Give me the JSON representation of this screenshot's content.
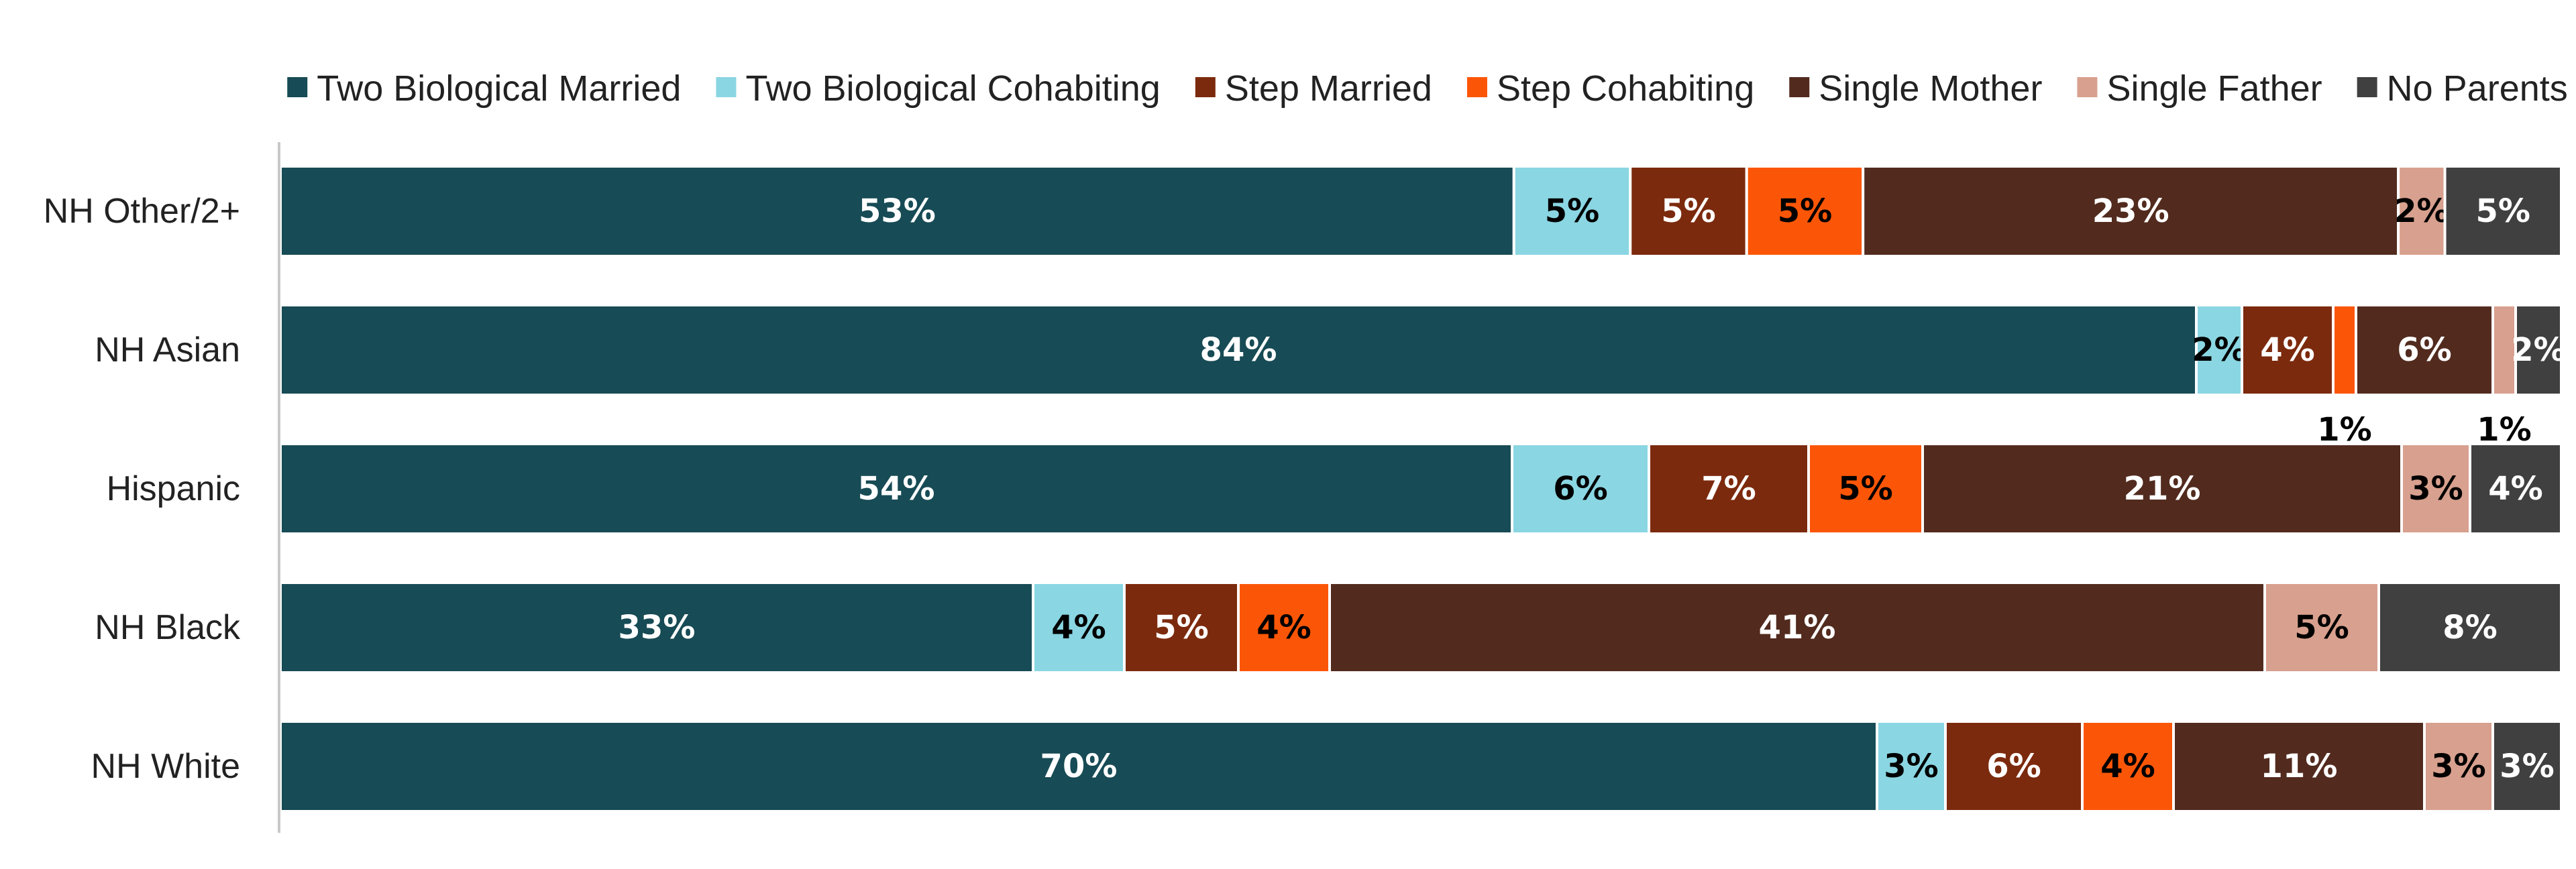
{
  "chart_data": {
    "type": "bar",
    "orientation": "horizontal",
    "stacked": true,
    "title": "",
    "xlabel": "",
    "ylabel": "",
    "xlim": [
      0,
      100
    ],
    "grid": false,
    "legend_position": "top",
    "categories": [
      "NH Other/2+",
      "NH Asian",
      "Hispanic",
      "NH Black",
      "NH White"
    ],
    "series": [
      {
        "name": "Two Biological Married",
        "color": "#174b55",
        "label_color": "#ffffff",
        "values": [
          53,
          84,
          54,
          33,
          70
        ],
        "labels": [
          "53%",
          "84%",
          "54%",
          "33%",
          "70%"
        ]
      },
      {
        "name": "Two Biological Cohabiting",
        "color": "#8ad6e2",
        "label_color": "#000000",
        "values": [
          5,
          2,
          6,
          4,
          3
        ],
        "labels": [
          "5%",
          "2%",
          "6%",
          "4%",
          "3%"
        ]
      },
      {
        "name": "Step Married",
        "color": "#7c2a0d",
        "label_color": "#ffffff",
        "values": [
          5,
          4,
          7,
          5,
          6
        ],
        "labels": [
          "5%",
          "4%",
          "7%",
          "5%",
          "6%"
        ]
      },
      {
        "name": "Step Cohabiting",
        "color": "#fb5607",
        "label_color": "#000000",
        "values": [
          5,
          1,
          5,
          4,
          4
        ],
        "labels": [
          "5%",
          "1%",
          "5%",
          "4%",
          "4%"
        ]
      },
      {
        "name": "Single Mother",
        "color": "#522b1e",
        "label_color": "#ffffff",
        "values": [
          23,
          6,
          21,
          41,
          11
        ],
        "labels": [
          "23%",
          "6%",
          "21%",
          "41%",
          "11%"
        ]
      },
      {
        "name": "Single Father",
        "color": "#d8a08e",
        "label_color": "#000000",
        "values": [
          2,
          1,
          3,
          5,
          3
        ],
        "labels": [
          "2%",
          "1%",
          "3%",
          "5%",
          "3%"
        ]
      },
      {
        "name": "No Parents",
        "color": "#404040",
        "label_color": "#ffffff",
        "values": [
          5,
          2,
          4,
          8,
          3
        ],
        "labels": [
          "5%",
          "2%",
          "4%",
          "8%",
          "3%"
        ]
      }
    ]
  }
}
